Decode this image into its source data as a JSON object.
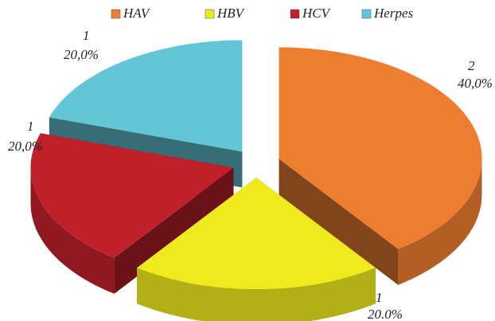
{
  "chart_data": {
    "type": "pie3d",
    "categories": [
      "HAV",
      "HBV",
      "HCV",
      "Herpes"
    ],
    "values": [
      2,
      1,
      1,
      1
    ],
    "percents": [
      40,
      20,
      20,
      20
    ],
    "percent_labels": [
      "40,0%",
      "20.0%",
      "20,0%",
      "20,0%"
    ],
    "colors": [
      "#ed7d31",
      "#eeea1e",
      "#c0202a",
      "#62c6d6"
    ],
    "legend": "top"
  }
}
